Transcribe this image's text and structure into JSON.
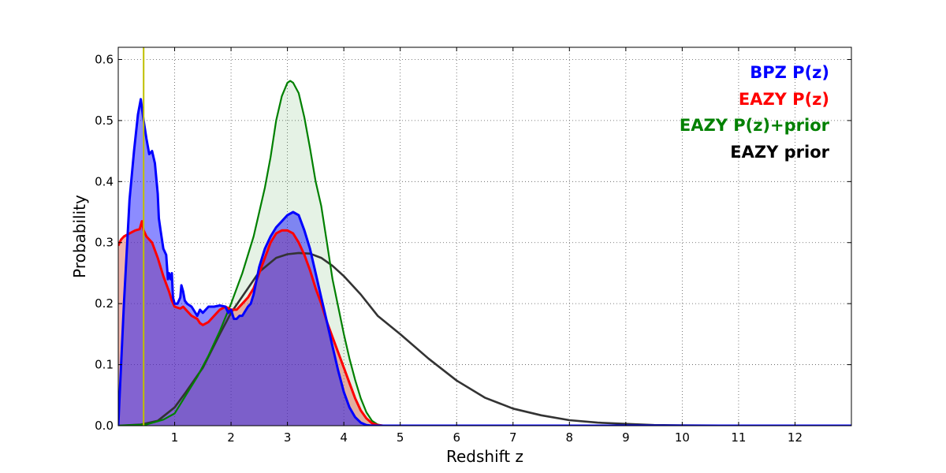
{
  "chart_data": {
    "type": "area",
    "xlabel": "Redshift z",
    "ylabel": "Probability",
    "xlim": [
      0,
      13
    ],
    "ylim": [
      0,
      0.62
    ],
    "x_ticks": [
      1,
      2,
      3,
      4,
      5,
      6,
      7,
      8,
      9,
      10,
      11,
      12
    ],
    "y_ticks": [
      0.0,
      0.1,
      0.2,
      0.3,
      0.4,
      0.5,
      0.6
    ],
    "grid": true,
    "legend_position": "top-right",
    "vline": {
      "x": 0.45,
      "color": "#bfbf00"
    },
    "series": [
      {
        "name": "BPZ P(z)",
        "color": "#0000ff",
        "fill": "#0000ff",
        "fill_opacity": 0.45,
        "points": [
          [
            0,
            0
          ],
          [
            0.1,
            0.2
          ],
          [
            0.2,
            0.37
          ],
          [
            0.28,
            0.45
          ],
          [
            0.35,
            0.51
          ],
          [
            0.4,
            0.535
          ],
          [
            0.45,
            0.5
          ],
          [
            0.5,
            0.47
          ],
          [
            0.55,
            0.445
          ],
          [
            0.6,
            0.45
          ],
          [
            0.65,
            0.43
          ],
          [
            0.7,
            0.38
          ],
          [
            0.72,
            0.34
          ],
          [
            0.75,
            0.32
          ],
          [
            0.8,
            0.29
          ],
          [
            0.85,
            0.28
          ],
          [
            0.88,
            0.24
          ],
          [
            0.9,
            0.25
          ],
          [
            0.93,
            0.24
          ],
          [
            0.95,
            0.25
          ],
          [
            0.97,
            0.21
          ],
          [
            1.0,
            0.2
          ],
          [
            1.05,
            0.2
          ],
          [
            1.1,
            0.21
          ],
          [
            1.12,
            0.23
          ],
          [
            1.15,
            0.22
          ],
          [
            1.18,
            0.205
          ],
          [
            1.22,
            0.2
          ],
          [
            1.3,
            0.195
          ],
          [
            1.4,
            0.18
          ],
          [
            1.45,
            0.19
          ],
          [
            1.5,
            0.185
          ],
          [
            1.6,
            0.195
          ],
          [
            1.7,
            0.195
          ],
          [
            1.8,
            0.197
          ],
          [
            1.9,
            0.195
          ],
          [
            1.95,
            0.185
          ],
          [
            2.0,
            0.19
          ],
          [
            2.05,
            0.175
          ],
          [
            2.1,
            0.175
          ],
          [
            2.15,
            0.18
          ],
          [
            2.2,
            0.18
          ],
          [
            2.3,
            0.195
          ],
          [
            2.35,
            0.2
          ],
          [
            2.4,
            0.215
          ],
          [
            2.5,
            0.26
          ],
          [
            2.6,
            0.29
          ],
          [
            2.7,
            0.31
          ],
          [
            2.8,
            0.325
          ],
          [
            2.9,
            0.335
          ],
          [
            3.0,
            0.345
          ],
          [
            3.1,
            0.35
          ],
          [
            3.2,
            0.345
          ],
          [
            3.3,
            0.32
          ],
          [
            3.4,
            0.29
          ],
          [
            3.5,
            0.25
          ],
          [
            3.6,
            0.21
          ],
          [
            3.7,
            0.17
          ],
          [
            3.8,
            0.13
          ],
          [
            3.9,
            0.09
          ],
          [
            4.0,
            0.055
          ],
          [
            4.1,
            0.03
          ],
          [
            4.2,
            0.014
          ],
          [
            4.3,
            0.005
          ],
          [
            4.4,
            0.001
          ],
          [
            4.5,
            0
          ],
          [
            13,
            0
          ]
        ]
      },
      {
        "name": "EAZY P(z)",
        "color": "#ff0000",
        "fill": "#e06a5a",
        "fill_opacity": 0.5,
        "points": [
          [
            0,
            0.295
          ],
          [
            0.05,
            0.305
          ],
          [
            0.1,
            0.31
          ],
          [
            0.2,
            0.315
          ],
          [
            0.3,
            0.32
          ],
          [
            0.38,
            0.322
          ],
          [
            0.42,
            0.335
          ],
          [
            0.45,
            0.32
          ],
          [
            0.5,
            0.31
          ],
          [
            0.6,
            0.3
          ],
          [
            0.7,
            0.275
          ],
          [
            0.8,
            0.245
          ],
          [
            0.9,
            0.22
          ],
          [
            0.95,
            0.205
          ],
          [
            1.0,
            0.195
          ],
          [
            1.1,
            0.192
          ],
          [
            1.15,
            0.195
          ],
          [
            1.2,
            0.19
          ],
          [
            1.3,
            0.18
          ],
          [
            1.4,
            0.175
          ],
          [
            1.45,
            0.168
          ],
          [
            1.5,
            0.165
          ],
          [
            1.6,
            0.17
          ],
          [
            1.7,
            0.18
          ],
          [
            1.8,
            0.19
          ],
          [
            1.9,
            0.195
          ],
          [
            2.0,
            0.19
          ],
          [
            2.1,
            0.19
          ],
          [
            2.2,
            0.2
          ],
          [
            2.3,
            0.21
          ],
          [
            2.4,
            0.225
          ],
          [
            2.5,
            0.25
          ],
          [
            2.6,
            0.275
          ],
          [
            2.7,
            0.3
          ],
          [
            2.8,
            0.315
          ],
          [
            2.9,
            0.32
          ],
          [
            3.0,
            0.32
          ],
          [
            3.1,
            0.315
          ],
          [
            3.2,
            0.3
          ],
          [
            3.3,
            0.28
          ],
          [
            3.4,
            0.255
          ],
          [
            3.5,
            0.225
          ],
          [
            3.6,
            0.2
          ],
          [
            3.7,
            0.17
          ],
          [
            3.8,
            0.145
          ],
          [
            3.9,
            0.12
          ],
          [
            4.0,
            0.095
          ],
          [
            4.1,
            0.07
          ],
          [
            4.2,
            0.045
          ],
          [
            4.3,
            0.025
          ],
          [
            4.4,
            0.012
          ],
          [
            4.5,
            0.004
          ],
          [
            4.6,
            0.001
          ],
          [
            4.7,
            0
          ],
          [
            13,
            0
          ]
        ]
      },
      {
        "name": "EAZY P(z)+prior",
        "color": "#008000",
        "fill": "#008000",
        "fill_opacity": 0.1,
        "points": [
          [
            0,
            0
          ],
          [
            0.5,
            0.002
          ],
          [
            0.8,
            0.01
          ],
          [
            1.0,
            0.02
          ],
          [
            1.2,
            0.05
          ],
          [
            1.4,
            0.08
          ],
          [
            1.6,
            0.115
          ],
          [
            1.8,
            0.155
          ],
          [
            2.0,
            0.2
          ],
          [
            2.2,
            0.25
          ],
          [
            2.4,
            0.31
          ],
          [
            2.6,
            0.39
          ],
          [
            2.7,
            0.44
          ],
          [
            2.8,
            0.5
          ],
          [
            2.9,
            0.54
          ],
          [
            3.0,
            0.562
          ],
          [
            3.05,
            0.565
          ],
          [
            3.1,
            0.562
          ],
          [
            3.2,
            0.545
          ],
          [
            3.3,
            0.505
          ],
          [
            3.4,
            0.455
          ],
          [
            3.5,
            0.4
          ],
          [
            3.6,
            0.36
          ],
          [
            3.7,
            0.3
          ],
          [
            3.8,
            0.24
          ],
          [
            3.9,
            0.195
          ],
          [
            4.0,
            0.15
          ],
          [
            4.1,
            0.11
          ],
          [
            4.2,
            0.075
          ],
          [
            4.3,
            0.045
          ],
          [
            4.4,
            0.022
          ],
          [
            4.5,
            0.008
          ],
          [
            4.6,
            0.002
          ],
          [
            4.7,
            0
          ],
          [
            13,
            0
          ]
        ]
      },
      {
        "name": "EAZY prior",
        "color": "#333333",
        "fill": "none",
        "fill_opacity": 0,
        "points": [
          [
            0,
            0
          ],
          [
            0.4,
            0.002
          ],
          [
            0.7,
            0.008
          ],
          [
            1.0,
            0.03
          ],
          [
            1.2,
            0.055
          ],
          [
            1.5,
            0.095
          ],
          [
            1.8,
            0.15
          ],
          [
            2.0,
            0.185
          ],
          [
            2.3,
            0.225
          ],
          [
            2.5,
            0.252
          ],
          [
            2.8,
            0.275
          ],
          [
            3.0,
            0.281
          ],
          [
            3.2,
            0.283
          ],
          [
            3.4,
            0.282
          ],
          [
            3.6,
            0.275
          ],
          [
            3.8,
            0.262
          ],
          [
            4.0,
            0.245
          ],
          [
            4.3,
            0.215
          ],
          [
            4.6,
            0.18
          ],
          [
            5.0,
            0.15
          ],
          [
            5.5,
            0.11
          ],
          [
            6.0,
            0.074
          ],
          [
            6.5,
            0.046
          ],
          [
            7.0,
            0.028
          ],
          [
            7.5,
            0.017
          ],
          [
            8.0,
            0.009
          ],
          [
            8.5,
            0.005
          ],
          [
            9.0,
            0.003
          ],
          [
            9.5,
            0.001
          ],
          [
            10.0,
            0.0005
          ],
          [
            11.0,
            0.0001
          ],
          [
            12.0,
            0
          ]
        ]
      }
    ]
  }
}
